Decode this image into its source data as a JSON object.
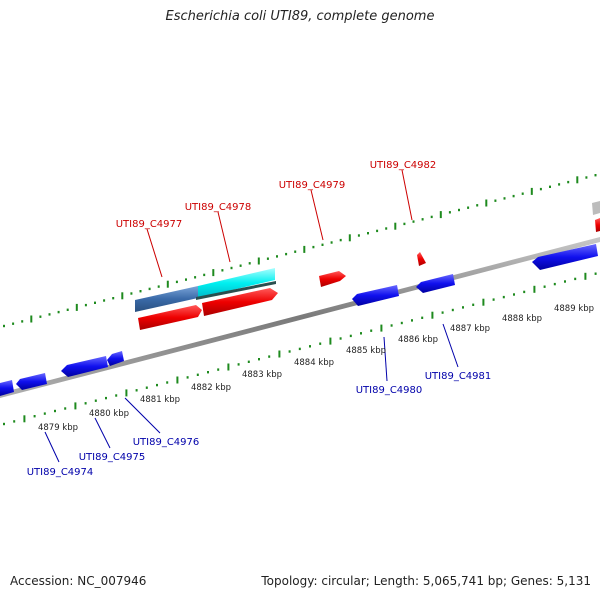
{
  "title": "Escherichia coli UTI89, complete genome",
  "footer": {
    "accession": "Accession: NC_007946",
    "summary": "Topology: circular; Length: 5,065,741 bp; Genes: 5,131"
  },
  "colors": {
    "forward_gene": "#ff0000",
    "forward_label": "#cc0000",
    "reverse_gene": "#0000ee",
    "reverse_label": "#0000aa",
    "cyan_feature": "#00ffff",
    "steel_feature": "#4a7ab8",
    "backbone": "#8a8a8a",
    "tick": "#1e8a1e"
  },
  "kbp_labels": [
    "4879 kbp",
    "4880 kbp",
    "4881 kbp",
    "4882 kbp",
    "4883 kbp",
    "4884 kbp",
    "4885 kbp",
    "4886 kbp",
    "4887 kbp",
    "4888 kbp",
    "4889 kbp"
  ],
  "forward_genes": [
    "UTI89_C4977",
    "UTI89_C4978",
    "UTI89_C4979",
    "UTI89_C4982"
  ],
  "reverse_genes": [
    "UTI89_C4974",
    "UTI89_C4975",
    "UTI89_C4976",
    "UTI89_C4980",
    "UTI89_C4981"
  ]
}
